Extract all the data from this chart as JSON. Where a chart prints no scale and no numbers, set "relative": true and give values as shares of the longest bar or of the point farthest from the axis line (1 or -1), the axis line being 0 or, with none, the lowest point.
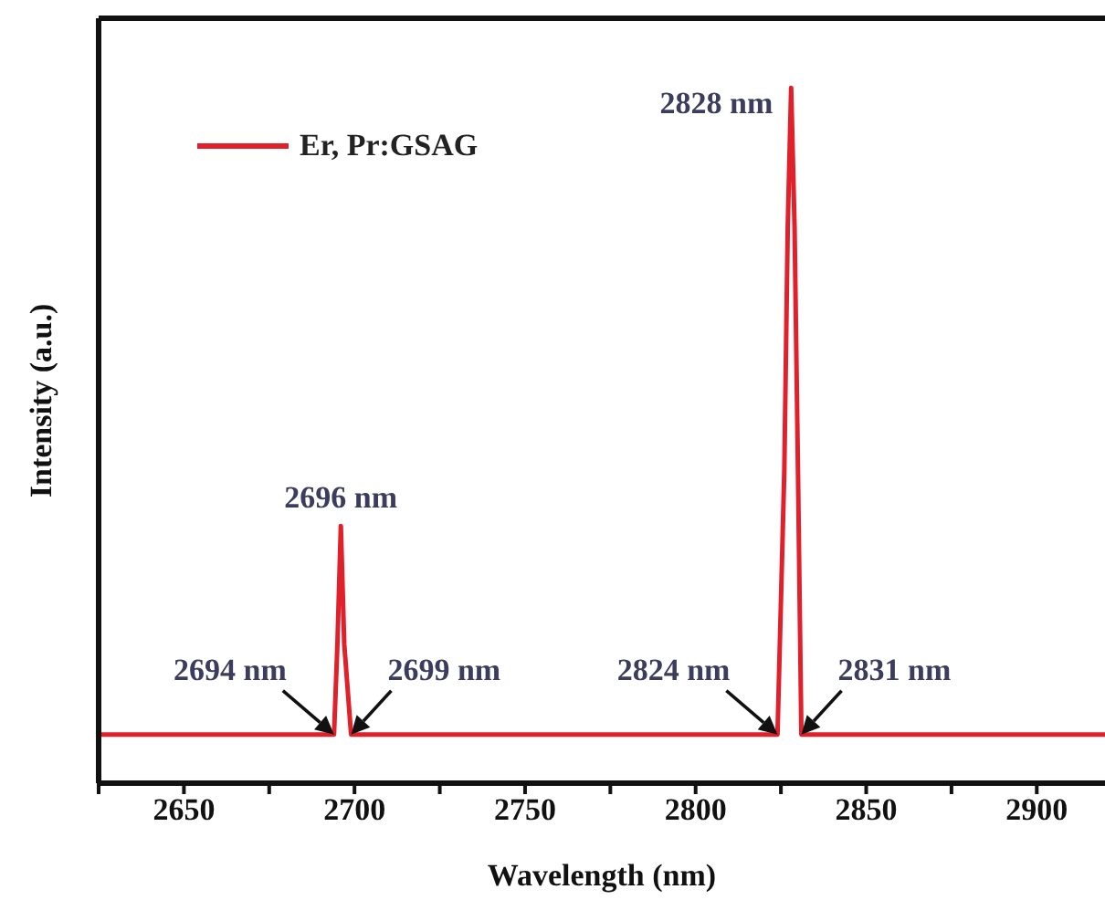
{
  "chart_data": {
    "type": "line",
    "relative": true,
    "xlabel": "Wavelength (nm)",
    "ylabel": "Intensity (a.u.)",
    "legend": "top left",
    "tick_labels": "x",
    "marker": "none",
    "line_style": "solid",
    "xlim": [
      2625,
      2920
    ],
    "xticks": [
      {
        "value": 2625,
        "label": null
      },
      2650,
      {
        "value": 2675,
        "label": null
      },
      2700,
      {
        "value": 2725,
        "label": null
      },
      2750,
      {
        "value": 2775,
        "label": null
      },
      2800,
      {
        "value": 2825,
        "label": null
      },
      2850,
      {
        "value": 2875,
        "label": null
      },
      2900
    ],
    "series": [
      {
        "name": "Er, Pr:GSAG",
        "color": "#e0202a",
        "x": [
          2625,
          2694,
          2695,
          2696,
          2697,
          2699,
          2824,
          2826,
          2827,
          2828,
          2829,
          2830,
          2831,
          2920
        ],
        "values": [
          0.07,
          0.07,
          0.2,
          0.37,
          0.2,
          0.07,
          0.07,
          0.45,
          0.8,
          1,
          0.8,
          0.45,
          0.07,
          0.07
        ]
      }
    ],
    "annotations": [
      {
        "text": "2828 nm",
        "x": 2828,
        "y": 1
      },
      {
        "text": "2696 nm",
        "x": 2696,
        "y": 0.37
      },
      {
        "text": "2694 nm",
        "x": 2694,
        "y": 0.07
      },
      {
        "text": "2699 nm",
        "x": 2699,
        "y": 0.07
      },
      {
        "text": "2824 nm",
        "x": 2824,
        "y": 0.07
      },
      {
        "text": "2831 nm",
        "x": 2831,
        "y": 0.07
      }
    ]
  }
}
